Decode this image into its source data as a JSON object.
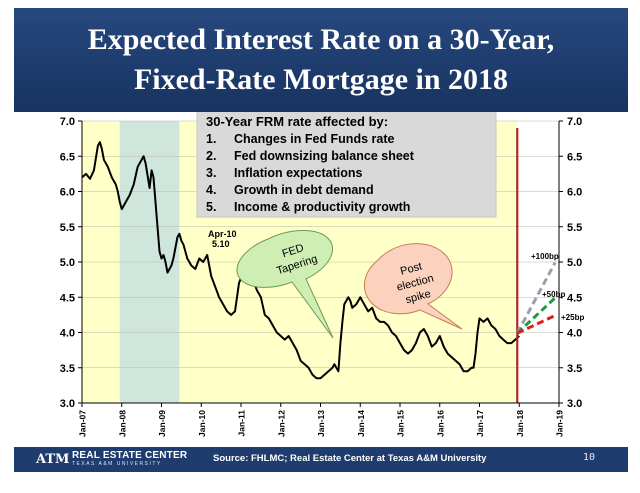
{
  "slide": {
    "title_line1": "Expected Interest Rate on a 30-Year,",
    "title_line2": "Fixed-Rate Mortgage in 2018",
    "source": "Source: FHLMC; Real Estate Center at Texas A&M University",
    "page_number": "10",
    "org_name": "REAL ESTATE CENTER",
    "org_sub": "TEXAS A&M UNIVERSITY",
    "logo_text": "ATM"
  },
  "colors": {
    "banner": "#1e3c6d",
    "plot_bg": "#ffffc8",
    "shade": "#cfe6dc",
    "series": "#000000",
    "vline": "#b3242a",
    "proj_100": "#98a0ac",
    "proj_50": "#1d9b3a",
    "proj_25": "#e21b1b"
  },
  "chart_data": {
    "type": "line",
    "title": "Expected Interest Rate on a 30-Year, Fixed-Rate Mortgage in 2018",
    "xlabel": "",
    "ylabel": "",
    "xlim": [
      2007,
      2019
    ],
    "ylim": [
      3.0,
      7.0
    ],
    "y_ticks": [
      "3.0",
      "3.5",
      "4.0",
      "4.5",
      "5.0",
      "5.5",
      "6.0",
      "6.5",
      "7.0"
    ],
    "x_ticks": [
      "Jan-07",
      "Jan-08",
      "Jan-09",
      "Jan-10",
      "Jan-11",
      "Jan-12",
      "Jan-13",
      "Jan-14",
      "Jan-15",
      "Jan-16",
      "Jan-17",
      "Jan-18",
      "Jan-19"
    ],
    "recession_shading": [
      2007.95,
      2009.45
    ],
    "vertical_line_at": 2017.95,
    "series": [
      {
        "name": "30-Year FRM rate",
        "x": [
          2007.0,
          2007.1,
          2007.2,
          2007.3,
          2007.4,
          2007.45,
          2007.5,
          2007.55,
          2007.65,
          2007.75,
          2007.85,
          2007.9,
          2007.95,
          2008.0,
          2008.1,
          2008.2,
          2008.3,
          2008.4,
          2008.5,
          2008.55,
          2008.6,
          2008.7,
          2008.75,
          2008.8,
          2008.85,
          2008.9,
          2008.95,
          2009.0,
          2009.05,
          2009.1,
          2009.15,
          2009.2,
          2009.25,
          2009.3,
          2009.35,
          2009.4,
          2009.45,
          2009.5,
          2009.55,
          2009.65,
          2009.75,
          2009.85,
          2009.95,
          2010.05,
          2010.15,
          2010.2,
          2010.25,
          2010.35,
          2010.45,
          2010.55,
          2010.65,
          2010.75,
          2010.85,
          2010.95,
          2011.05,
          2011.1,
          2011.2,
          2011.3,
          2011.4,
          2011.5,
          2011.6,
          2011.7,
          2011.8,
          2011.9,
          2012.0,
          2012.1,
          2012.2,
          2012.3,
          2012.4,
          2012.5,
          2012.6,
          2012.7,
          2012.8,
          2012.9,
          2013.0,
          2013.1,
          2013.2,
          2013.3,
          2013.35,
          2013.4,
          2013.45,
          2013.5,
          2013.55,
          2013.6,
          2013.7,
          2013.75,
          2013.8,
          2013.9,
          2014.0,
          2014.1,
          2014.2,
          2014.3,
          2014.4,
          2014.5,
          2014.6,
          2014.7,
          2014.8,
          2014.9,
          2015.0,
          2015.1,
          2015.2,
          2015.3,
          2015.4,
          2015.5,
          2015.6,
          2015.7,
          2015.8,
          2015.9,
          2016.0,
          2016.1,
          2016.2,
          2016.3,
          2016.4,
          2016.5,
          2016.6,
          2016.7,
          2016.8,
          2016.85,
          2016.9,
          2016.95,
          2017.0,
          2017.1,
          2017.2,
          2017.3,
          2017.4,
          2017.5,
          2017.6,
          2017.7,
          2017.8,
          2017.9,
          2018.0
        ],
        "y": [
          6.2,
          6.25,
          6.18,
          6.3,
          6.65,
          6.7,
          6.6,
          6.45,
          6.35,
          6.2,
          6.1,
          6.0,
          5.85,
          5.75,
          5.85,
          5.95,
          6.1,
          6.35,
          6.45,
          6.5,
          6.4,
          6.05,
          6.3,
          6.2,
          5.85,
          5.5,
          5.15,
          5.05,
          5.1,
          5.0,
          4.85,
          4.9,
          4.95,
          5.05,
          5.2,
          5.35,
          5.4,
          5.3,
          5.25,
          5.05,
          4.95,
          4.9,
          5.05,
          5.0,
          5.1,
          4.95,
          4.8,
          4.65,
          4.5,
          4.4,
          4.3,
          4.25,
          4.3,
          4.7,
          4.85,
          4.8,
          4.9,
          4.75,
          4.6,
          4.5,
          4.25,
          4.2,
          4.1,
          4.0,
          3.95,
          3.9,
          3.95,
          3.85,
          3.75,
          3.6,
          3.55,
          3.5,
          3.4,
          3.35,
          3.35,
          3.4,
          3.45,
          3.5,
          3.55,
          3.5,
          3.45,
          3.85,
          4.15,
          4.4,
          4.5,
          4.45,
          4.35,
          4.4,
          4.5,
          4.4,
          4.3,
          4.35,
          4.2,
          4.15,
          4.15,
          4.1,
          4.0,
          3.95,
          3.85,
          3.75,
          3.7,
          3.75,
          3.85,
          4.0,
          4.05,
          3.95,
          3.8,
          3.85,
          3.95,
          3.8,
          3.7,
          3.65,
          3.6,
          3.55,
          3.45,
          3.45,
          3.5,
          3.5,
          3.7,
          4.0,
          4.2,
          4.15,
          4.2,
          4.1,
          4.05,
          3.95,
          3.9,
          3.85,
          3.85,
          3.9,
          3.95
        ]
      },
      {
        "name": "+100bp",
        "x": [
          2017.95,
          2018.9
        ],
        "y": [
          3.99,
          4.99
        ],
        "style": "dashed"
      },
      {
        "name": "+50bp",
        "x": [
          2017.95,
          2018.9
        ],
        "y": [
          3.99,
          4.49
        ],
        "style": "dashed"
      },
      {
        "name": "+25bp",
        "x": [
          2017.95,
          2018.9
        ],
        "y": [
          3.99,
          4.24
        ],
        "style": "dashed"
      }
    ],
    "annotations": {
      "apr10_label": "Apr-10",
      "apr10_value": "5.10",
      "fed_tapering": "FED Tapering",
      "fed_line1": "FED",
      "fed_line2": "Tapering",
      "post_election": "Post election spike",
      "post_line1": "Post",
      "post_line2": "election",
      "post_line3": "spike",
      "label_100": "+100bp",
      "label_50": "+50bp",
      "label_25": "+25bp"
    },
    "factors_box": {
      "heading": "30-Year FRM rate affected by:",
      "items": [
        {
          "num": "1.",
          "text": "Changes in Fed Funds rate"
        },
        {
          "num": "2.",
          "text": "Fed downsizing balance sheet"
        },
        {
          "num": "3.",
          "text": "Inflation expectations"
        },
        {
          "num": "4.",
          "text": "Growth in debt demand"
        },
        {
          "num": "5.",
          "text": "Income & productivity growth"
        }
      ]
    }
  }
}
